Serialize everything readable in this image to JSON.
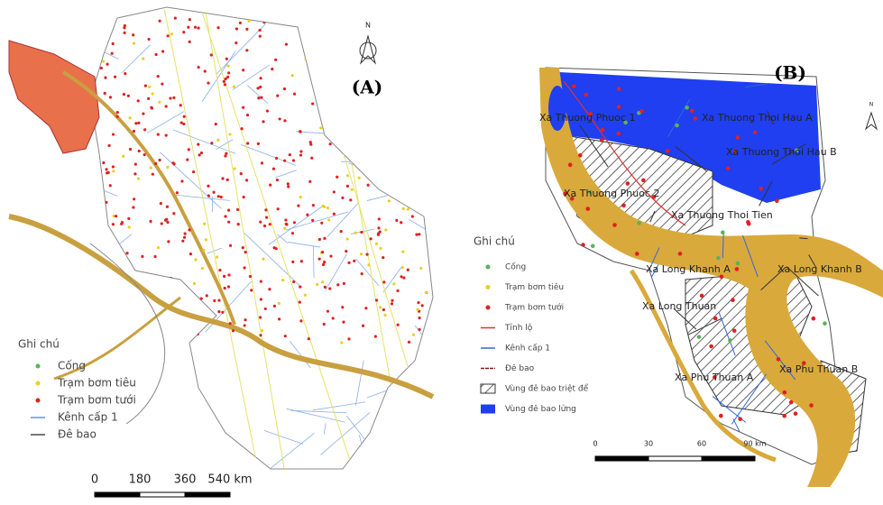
{
  "panels": [
    {
      "label": "(A)",
      "north": "N",
      "legend": {
        "title": "Ghi chú",
        "items": [
          "Cống",
          "Trạm bơm tiêu",
          "Trạm bơm tưới",
          "Kênh cấp 1",
          "Đê bao"
        ]
      },
      "scale": [
        "0",
        "180",
        "360",
        "540 km"
      ]
    },
    {
      "label": "(B)",
      "north": "N",
      "places": [
        "Xa Thuong Phuoc 1",
        "Xa Thuong Thoi Hau A",
        "Xa Thuong Thoi Hau B",
        "Xa Thuong Phuoc 2",
        "Xa Thuong Thoi Tien",
        "Xa Long Khanh A",
        "Xa Long Khanh B",
        "Xa Long Thuan",
        "Xa Phu Thuan A",
        "Xa Phu Thuan B"
      ],
      "legend": {
        "title": "Ghi chú",
        "items": [
          "Cống",
          "Trạm bơm tiêu",
          "Trạm bơm tưới",
          "Tỉnh lộ",
          "Kênh cấp 1",
          "Đê bao",
          "Vùng đê bao triệt để",
          "Vùng đê bao lửng"
        ]
      },
      "scale": [
        "0",
        "30",
        "60",
        "90 km"
      ]
    }
  ]
}
